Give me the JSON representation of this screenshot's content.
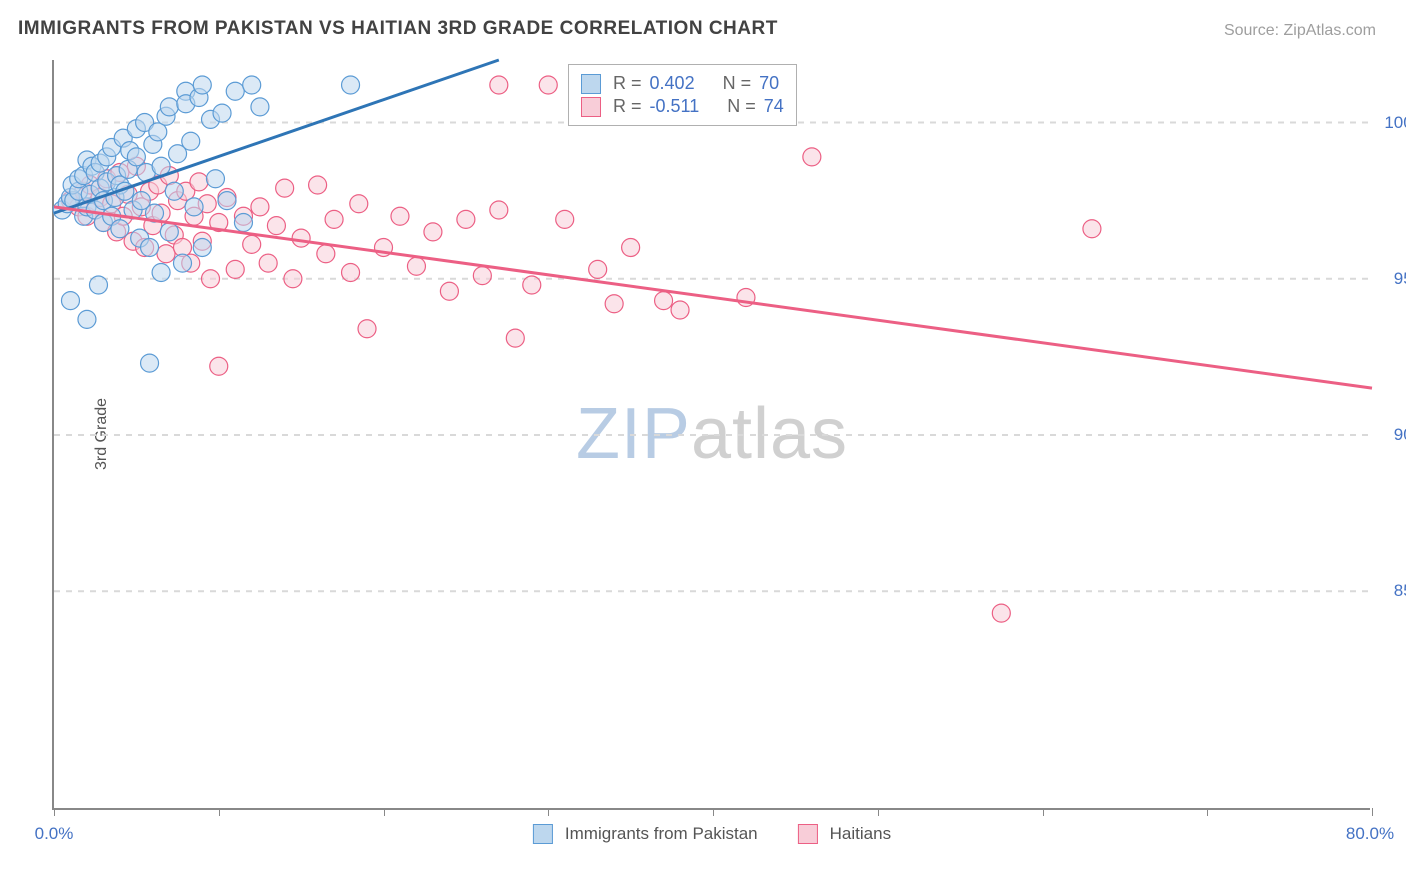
{
  "title": "IMMIGRANTS FROM PAKISTAN VS HAITIAN 3RD GRADE CORRELATION CHART",
  "source_label": "Source: ZipAtlas.com",
  "ylabel": "3rd Grade",
  "xlim": [
    0,
    80
  ],
  "ylim": [
    78,
    102
  ],
  "x_end_label": "80.0%",
  "x_start_label": "0.0%",
  "ytick_labels": [
    "100.0%",
    "95.0%",
    "90.0%",
    "85.0%"
  ],
  "ytick_values": [
    100,
    95,
    90,
    85
  ],
  "xtick_values": [
    0,
    10,
    20,
    30,
    40,
    50,
    60,
    70,
    80
  ],
  "watermark": {
    "part1": "ZIP",
    "part2": "atlas"
  },
  "series": {
    "blue": {
      "label": "Immigrants from Pakistan",
      "R_label": "R =",
      "R_value": "0.402",
      "N_label": "N =",
      "N_value": "70",
      "fill": "#bdd7ee",
      "stroke": "#5b9bd5",
      "fill_opacity": 0.55,
      "marker_r": 9,
      "line_color": "#2e75b6",
      "line_width": 3,
      "trend": {
        "x1": 0,
        "y1": 97.1,
        "x2": 27,
        "y2": 102
      },
      "points": [
        [
          0.5,
          97.2
        ],
        [
          0.8,
          97.4
        ],
        [
          1.0,
          97.6
        ],
        [
          1.2,
          97.5
        ],
        [
          1.1,
          98.0
        ],
        [
          1.5,
          97.8
        ],
        [
          1.5,
          98.2
        ],
        [
          1.8,
          97.0
        ],
        [
          1.8,
          98.3
        ],
        [
          2.0,
          97.3
        ],
        [
          2.0,
          98.8
        ],
        [
          2.2,
          97.7
        ],
        [
          2.3,
          98.6
        ],
        [
          2.5,
          97.2
        ],
        [
          2.5,
          98.4
        ],
        [
          2.8,
          97.9
        ],
        [
          2.8,
          98.7
        ],
        [
          3.0,
          96.8
        ],
        [
          3.0,
          97.5
        ],
        [
          3.2,
          98.1
        ],
        [
          3.2,
          98.9
        ],
        [
          3.5,
          97.0
        ],
        [
          3.5,
          99.2
        ],
        [
          3.7,
          97.6
        ],
        [
          3.8,
          98.3
        ],
        [
          4.0,
          96.6
        ],
        [
          4.0,
          98.0
        ],
        [
          4.2,
          99.5
        ],
        [
          4.3,
          97.8
        ],
        [
          4.5,
          98.5
        ],
        [
          4.6,
          99.1
        ],
        [
          4.8,
          97.2
        ],
        [
          5.0,
          98.9
        ],
        [
          5.0,
          99.8
        ],
        [
          5.2,
          96.3
        ],
        [
          5.3,
          97.5
        ],
        [
          5.5,
          100.0
        ],
        [
          5.6,
          98.4
        ],
        [
          5.8,
          96.0
        ],
        [
          6.0,
          99.3
        ],
        [
          6.1,
          97.1
        ],
        [
          6.3,
          99.7
        ],
        [
          6.5,
          95.2
        ],
        [
          6.5,
          98.6
        ],
        [
          6.8,
          100.2
        ],
        [
          7.0,
          96.5
        ],
        [
          7.0,
          100.5
        ],
        [
          7.3,
          97.8
        ],
        [
          7.5,
          99.0
        ],
        [
          7.8,
          95.5
        ],
        [
          8.0,
          101.0
        ],
        [
          8.0,
          100.6
        ],
        [
          8.3,
          99.4
        ],
        [
          8.5,
          97.3
        ],
        [
          8.8,
          100.8
        ],
        [
          9.0,
          101.2
        ],
        [
          9.0,
          96.0
        ],
        [
          9.5,
          100.1
        ],
        [
          9.8,
          98.2
        ],
        [
          10.2,
          100.3
        ],
        [
          10.5,
          97.5
        ],
        [
          11.0,
          101.0
        ],
        [
          11.5,
          96.8
        ],
        [
          12.0,
          101.2
        ],
        [
          12.5,
          100.5
        ],
        [
          1.0,
          94.3
        ],
        [
          2.7,
          94.8
        ],
        [
          5.8,
          92.3
        ],
        [
          2.0,
          93.7
        ],
        [
          18.0,
          101.2
        ]
      ]
    },
    "pink": {
      "label": "Haitians",
      "R_label": "R =",
      "R_value": "-0.511",
      "N_label": "N =",
      "N_value": "74",
      "fill": "#f8cdd8",
      "stroke": "#ec5f84",
      "fill_opacity": 0.55,
      "marker_r": 9,
      "line_color": "#ec5f84",
      "line_width": 3,
      "trend": {
        "x1": 0,
        "y1": 97.3,
        "x2": 80,
        "y2": 91.5
      },
      "points": [
        [
          1.0,
          97.5
        ],
        [
          1.5,
          97.3
        ],
        [
          1.8,
          97.8
        ],
        [
          2.0,
          97.0
        ],
        [
          2.2,
          98.0
        ],
        [
          2.5,
          97.2
        ],
        [
          2.8,
          97.6
        ],
        [
          3.0,
          96.8
        ],
        [
          3.2,
          98.2
        ],
        [
          3.5,
          97.4
        ],
        [
          3.8,
          96.5
        ],
        [
          4.0,
          98.4
        ],
        [
          4.2,
          97.0
        ],
        [
          4.5,
          97.7
        ],
        [
          4.8,
          96.2
        ],
        [
          5.0,
          98.6
        ],
        [
          5.3,
          97.3
        ],
        [
          5.5,
          96.0
        ],
        [
          5.8,
          97.8
        ],
        [
          6.0,
          96.7
        ],
        [
          6.3,
          98.0
        ],
        [
          6.5,
          97.1
        ],
        [
          6.8,
          95.8
        ],
        [
          7.0,
          98.3
        ],
        [
          7.3,
          96.4
        ],
        [
          7.5,
          97.5
        ],
        [
          7.8,
          96.0
        ],
        [
          8.0,
          97.8
        ],
        [
          8.3,
          95.5
        ],
        [
          8.5,
          97.0
        ],
        [
          8.8,
          98.1
        ],
        [
          9.0,
          96.2
        ],
        [
          9.3,
          97.4
        ],
        [
          9.5,
          95.0
        ],
        [
          10.0,
          96.8
        ],
        [
          10.5,
          97.6
        ],
        [
          11.0,
          95.3
        ],
        [
          11.5,
          97.0
        ],
        [
          12.0,
          96.1
        ],
        [
          12.5,
          97.3
        ],
        [
          13.0,
          95.5
        ],
        [
          13.5,
          96.7
        ],
        [
          14.0,
          97.9
        ],
        [
          14.5,
          95.0
        ],
        [
          15.0,
          96.3
        ],
        [
          16.0,
          98.0
        ],
        [
          16.5,
          95.8
        ],
        [
          17.0,
          96.9
        ],
        [
          18.0,
          95.2
        ],
        [
          18.5,
          97.4
        ],
        [
          19.0,
          93.4
        ],
        [
          20.0,
          96.0
        ],
        [
          21.0,
          97.0
        ],
        [
          22.0,
          95.4
        ],
        [
          23.0,
          96.5
        ],
        [
          24.0,
          94.6
        ],
        [
          25.0,
          96.9
        ],
        [
          26.0,
          95.1
        ],
        [
          27.0,
          97.2
        ],
        [
          28.0,
          93.1
        ],
        [
          29.0,
          94.8
        ],
        [
          30.0,
          101.2
        ],
        [
          31.0,
          96.9
        ],
        [
          33.0,
          95.3
        ],
        [
          34.0,
          94.2
        ],
        [
          35.0,
          96.0
        ],
        [
          37.0,
          94.3
        ],
        [
          38.0,
          94.0
        ],
        [
          42.0,
          94.4
        ],
        [
          46.0,
          98.9
        ],
        [
          10.0,
          92.2
        ],
        [
          63.0,
          96.6
        ],
        [
          57.5,
          84.3
        ],
        [
          27.0,
          101.2
        ]
      ]
    }
  }
}
